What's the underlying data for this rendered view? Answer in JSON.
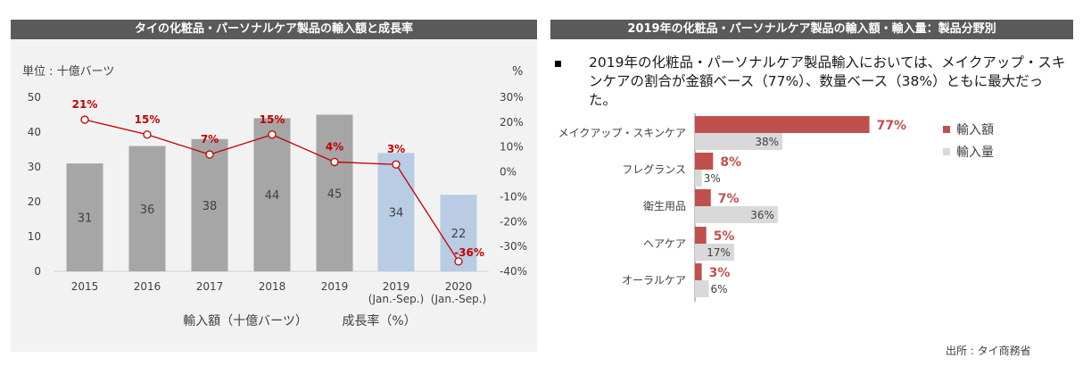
{
  "left_panel": {
    "title": "タイの化粧品・パーソナルケア製品の輸入額と成長率",
    "unit_label": "単位 : 十億バーツ",
    "percent_label": "%",
    "legend_bar": "輸入額（十億バーツ）",
    "legend_line": "成長率（%）"
  },
  "right_panel": {
    "title": "2019年の化粧品・パーソナルケア製品の輸入額・輸入量：製品分野別",
    "note": "2019年の化粧品・パーソナルケア製品輸入においては、メイクアップ・スキンケアの割合が金額ベース（77%）、数量ベース（38%）ともに最大だった。",
    "source": "出所 : タイ商務省"
  },
  "colors": {
    "bar_gray": "#a6a6a6",
    "bar_blue": "#b8cce4",
    "line_red": "#c00000",
    "value_red": "#c0504d",
    "volume_gray": "#d9d9d9"
  },
  "chart_data": [
    {
      "type": "bar",
      "categories": [
        "2015",
        "2016",
        "2017",
        "2018",
        "2019",
        "2019\n(Jan.-Sep.)",
        "2020\n(Jan.-Sep.)"
      ],
      "series": [
        {
          "name": "輸入額（十億バーツ）",
          "type": "bar",
          "axis": "left",
          "values": [
            31,
            36,
            38,
            44,
            45,
            34,
            22
          ],
          "labels": [
            "31",
            "36",
            "38",
            "44",
            "45",
            "34",
            "22"
          ]
        },
        {
          "name": "成長率（%）",
          "type": "line",
          "axis": "right",
          "values": [
            21,
            15,
            7,
            15,
            4,
            3,
            -36
          ],
          "labels": [
            "21%",
            "15%",
            "7%",
            "15%",
            "4%",
            "3%",
            "-36%"
          ]
        }
      ],
      "y_left": {
        "ylim": [
          0,
          50
        ],
        "ticks": [
          "0",
          "10",
          "20",
          "30",
          "40",
          "50"
        ]
      },
      "y_right": {
        "ylim": [
          -40,
          30
        ],
        "ticks": [
          "-40%",
          "-30%",
          "-20%",
          "-10%",
          "0%",
          "10%",
          "20%",
          "30%"
        ]
      },
      "grid": false,
      "legend_position": "bottom"
    },
    {
      "type": "bar",
      "orientation": "horizontal",
      "categories": [
        "メイクアップ・スキンケア",
        "フレグランス",
        "衛生用品",
        "ヘアケア",
        "オーラルケア"
      ],
      "series": [
        {
          "name": "輸入額",
          "values": [
            77,
            8,
            7,
            5,
            3
          ],
          "labels": [
            "77%",
            "8%",
            "7%",
            "5%",
            "3%"
          ]
        },
        {
          "name": "輸入量",
          "values": [
            38,
            3,
            36,
            17,
            6
          ],
          "labels": [
            "38%",
            "3%",
            "36%",
            "17%",
            "6%"
          ]
        }
      ],
      "xlim": [
        0,
        100
      ],
      "legend_position": "right"
    }
  ]
}
